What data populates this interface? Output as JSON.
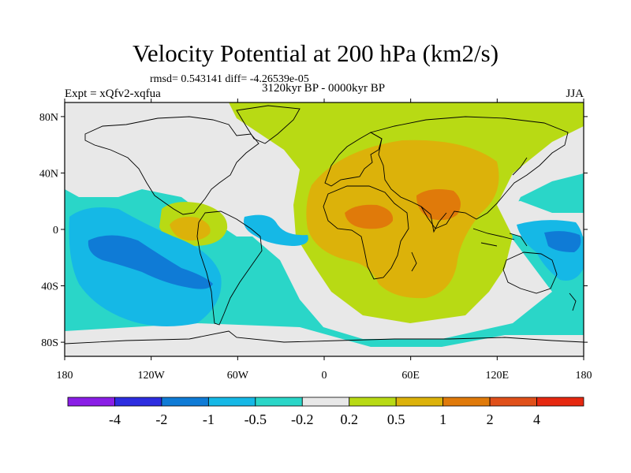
{
  "title": "Velocity Potential at 200 hPa (km2/s)",
  "stats": "rmsd= 0.543141 diff= -4.26539e-05",
  "experiment": "Expt = xQfv2-xqfua",
  "period": "3120kyr BP - 0000kyr BP",
  "season": "JJA",
  "map": {
    "projection": "cylindrical-equidistant",
    "lon_range": [
      -180,
      180
    ],
    "lat_range": [
      -90,
      90
    ],
    "lat_ticks": [
      {
        "value": 80,
        "label": "80N"
      },
      {
        "value": 40,
        "label": "40N"
      },
      {
        "value": 0,
        "label": "0"
      },
      {
        "value": -40,
        "label": "40S"
      },
      {
        "value": -80,
        "label": "80S"
      }
    ],
    "lon_ticks": [
      {
        "value": -180,
        "label": "180"
      },
      {
        "value": -120,
        "label": "120W"
      },
      {
        "value": -60,
        "label": "60W"
      },
      {
        "value": 0,
        "label": "0"
      },
      {
        "value": 60,
        "label": "60E"
      },
      {
        "value": 120,
        "label": "120E"
      },
      {
        "value": 180,
        "label": "180"
      }
    ]
  },
  "colorbar": {
    "colors": [
      "#8a1ee6",
      "#2d2de0",
      "#0f7bd6",
      "#15b8e6",
      "#2ad6c8",
      "#e8e8e8",
      "#b8da14",
      "#dcb20a",
      "#e07a0a",
      "#e0501a",
      "#e62810"
    ],
    "labels": [
      "-4",
      "-2",
      "-1",
      "-0.5",
      "-0.2",
      "0.2",
      "0.5",
      "1",
      "2",
      "4"
    ]
  },
  "fields": {
    "ocean_neg_color": "#2ad6c8",
    "neutral_color": "#e8e8e8",
    "pos_weak_color": "#b8da14",
    "pos_mid_color": "#dcb20a",
    "pos_strong_color": "#e07a0a",
    "neg_mid_color": "#15b8e6",
    "neg_strong_color": "#0f7bd6"
  }
}
